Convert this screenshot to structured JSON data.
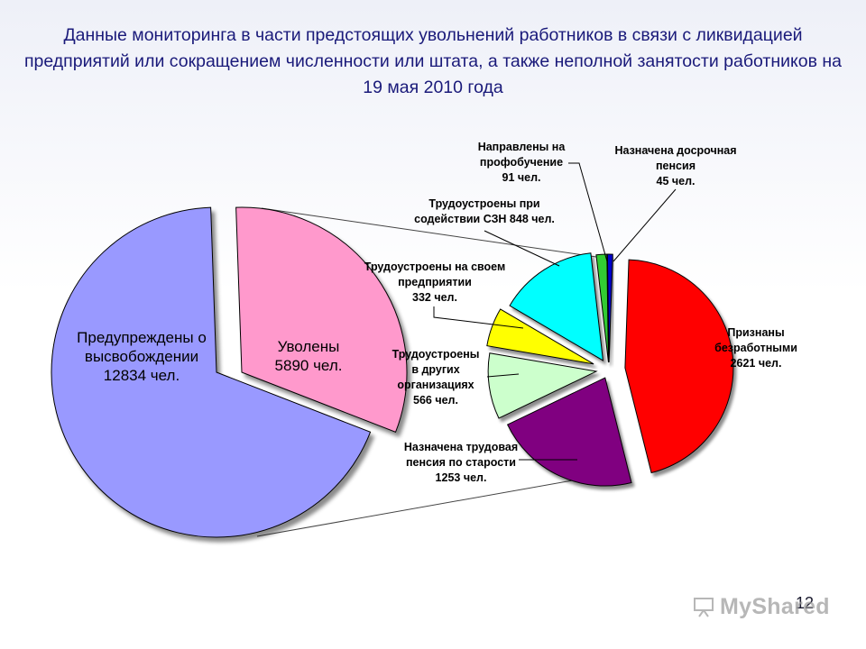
{
  "page": {
    "title": "Данные мониторинга в части предстоящих увольнений работников в связи с ликвидацией предприятий или сокращением численности или штата, а также неполной занятости работников на 19 мая 2010 года",
    "page_number": "12",
    "watermark": "MyShared"
  },
  "chart_data": [
    {
      "type": "pie",
      "title": "",
      "labels": [
        "Предупреждены о высвобождении",
        "Уволены"
      ],
      "values": [
        12834,
        5890
      ],
      "unit": "чел.",
      "label_lines": [
        [
          "Предупреждены о",
          "высвобождении",
          "12834 чел."
        ],
        [
          "Уволены",
          "5890 чел."
        ]
      ],
      "colors": [
        "#9999ff",
        "#ff99cc"
      ],
      "exploded": true
    },
    {
      "type": "pie",
      "title": "",
      "breakdown_of": "Уволены",
      "labels": [
        "Признаны безработными",
        "Назначена трудовая пенсия по старости",
        "Трудоустроены в других организациях",
        "Трудоустроены на своем предприятии",
        "Трудоустроены при содействии СЗН",
        "Направлены на профобучение",
        "Назначена досрочная пенсия"
      ],
      "values": [
        2621,
        1253,
        566,
        332,
        848,
        91,
        45
      ],
      "unit": "чел.",
      "label_lines": [
        [
          "Признаны",
          "безработными",
          "2621 чел."
        ],
        [
          "Назначена трудовая",
          "пенсия по старости",
          "1253 чел."
        ],
        [
          "Трудоустроены",
          "в других",
          "организациях",
          "566 чел."
        ],
        [
          "Трудоустроены на своем",
          "предприятии",
          "332 чел."
        ],
        [
          "Трудоустроены при",
          "содействии СЗН 848 чел."
        ],
        [
          "Направлены на",
          "профобучение",
          "91 чел."
        ],
        [
          "Назначена досрочная",
          "пенсия",
          "45 чел."
        ]
      ],
      "colors": [
        "#ff0000",
        "#800080",
        "#ccffcc",
        "#ffff00",
        "#00ffff",
        "#33cc33",
        "#0000cc"
      ],
      "exploded": true
    }
  ]
}
